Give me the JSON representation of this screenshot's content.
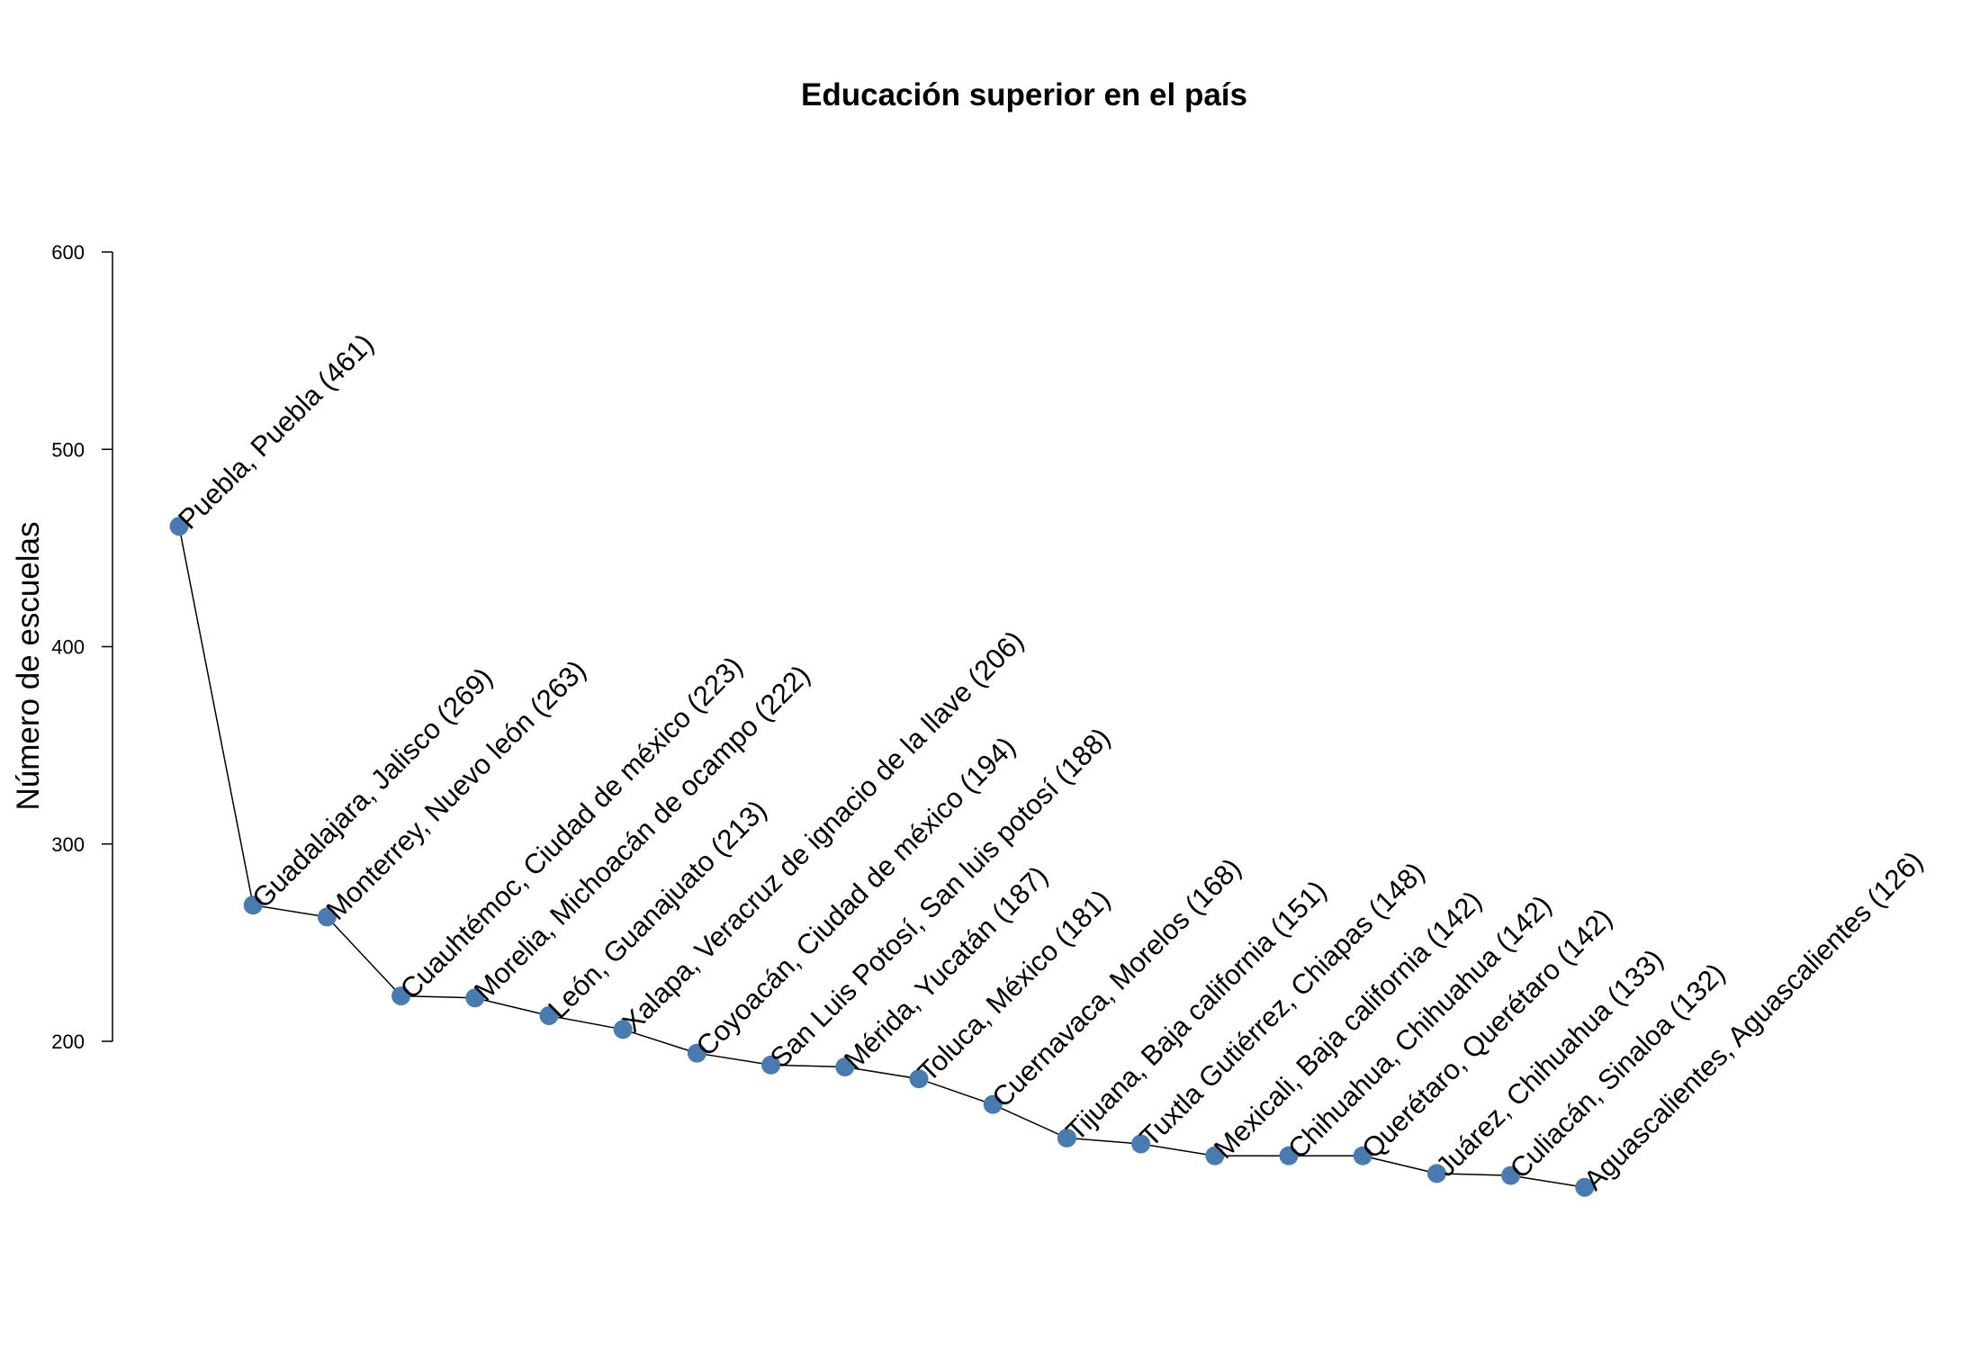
{
  "chart_data": {
    "type": "line",
    "title": "Educación superior en el país",
    "xlabel": "",
    "ylabel": "Número de escuelas",
    "ylim": [
      120,
      600
    ],
    "yticks": [
      200,
      300,
      400,
      500,
      600
    ],
    "x_axis_shown": false,
    "grid": false,
    "point_color": "#4a7bb0",
    "line_color": "#000000",
    "categories": [
      "Puebla, Puebla",
      "Guadalajara, Jalisco",
      "Monterrey, Nuevo león",
      "Cuauhtémoc, Ciudad de méxico",
      "Morelia, Michoacán de ocampo",
      "León, Guanajuato",
      "Xalapa, Veracruz de ignacio de la llave",
      "Coyoacán, Ciudad de méxico",
      "San Luis Potosí, San luis potosí",
      "Mérida, Yucatán",
      "Toluca, México",
      "Cuernavaca, Morelos",
      "Tijuana, Baja california",
      "Tuxtla Gutiérrez, Chiapas",
      "Mexicali, Baja california",
      "Chihuahua, Chihuahua",
      "Querétaro, Querétaro",
      "Juárez, Chihuahua",
      "Culiacán, Sinaloa",
      "Aguascalientes, Aguascalientes"
    ],
    "values": [
      461,
      269,
      263,
      223,
      222,
      213,
      206,
      194,
      188,
      187,
      181,
      168,
      151,
      148,
      142,
      142,
      142,
      133,
      132,
      126
    ],
    "labels": [
      "Puebla, Puebla (461)",
      "Guadalajara, Jalisco (269)",
      "Monterrey, Nuevo león (263)",
      "Cuauhtémoc, Ciudad de méxico (223)",
      "Morelia, Michoacán de ocampo (222)",
      "León, Guanajuato (213)",
      "Xalapa, Veracruz de ignacio de la llave (206)",
      "Coyoacán, Ciudad de méxico (194)",
      "San Luis Potosí, San luis potosí (188)",
      "Mérida, Yucatán (187)",
      "Toluca, México (181)",
      "Cuernavaca, Morelos (168)",
      "Tijuana, Baja california (151)",
      "Tuxtla Gutiérrez, Chiapas (148)",
      "Mexicali, Baja california (142)",
      "Chihuahua, Chihuahua (142)",
      "Querétaro, Querétaro (142)",
      "Juárez, Chihuahua (133)",
      "Culiacán, Sinaloa (132)",
      "Aguascalientes, Aguascalientes (126)"
    ]
  }
}
